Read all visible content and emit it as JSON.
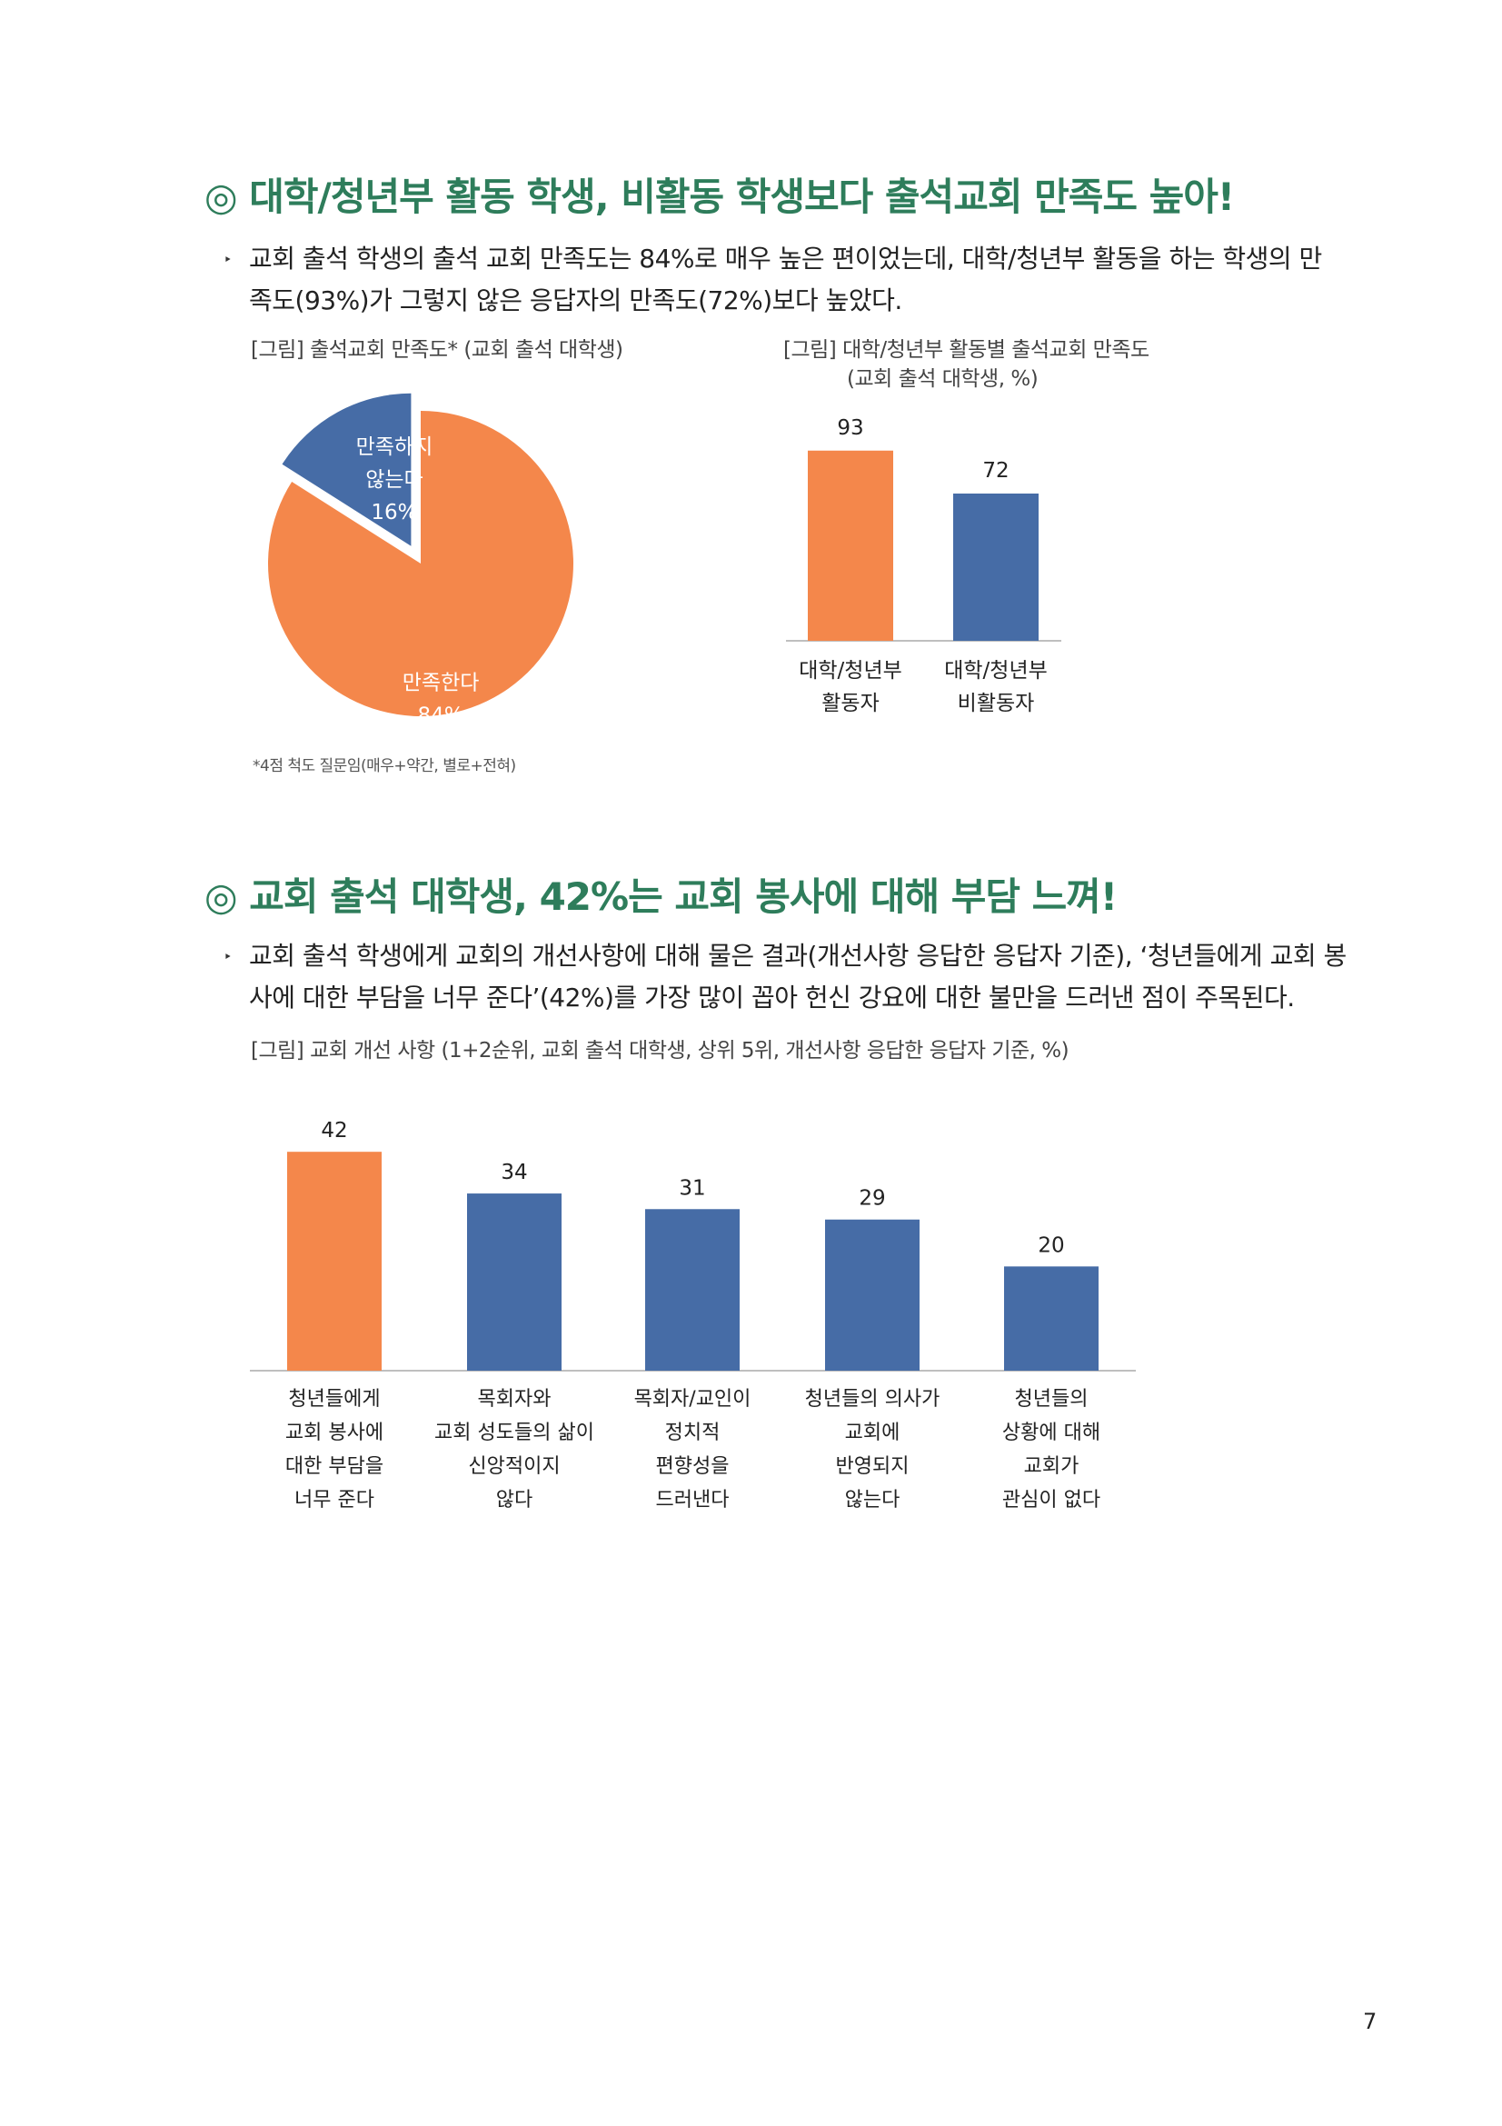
{
  "section1": {
    "heading": "◎ 대학/청년부 활동 학생, 비활동 학생보다 출석교회 만족도 높아!",
    "bullet_line1": "교회 출석 학생의 출석 교회 만족도는 84%로 매우 높은 편이었는데, 대학/청년부 활동을 하는 학생의 만",
    "bullet_line2": "족도(93%)가 그렇지 않은 응답자의 만족도(72%)보다 높았다.",
    "pie_caption": "[그림] 출석교회 만족도* (교회 출석 대학생)",
    "bar_caption_line1": "[그림] 대학/청년부 활동별 출석교회 만족도",
    "bar_caption_line2": "(교회 출석 대학생, %)",
    "footnote": "*4점 척도 질문임(매우+약간, 별로+전혀)"
  },
  "section2": {
    "heading": "◎ 교회 출석 대학생, 42%는 교회 봉사에 대해 부담 느껴!",
    "bullet_line1": "교회 출석 학생에게 교회의 개선사항에 대해 물은 결과(개선사항 응답한 응답자 기준), ‘청년들에게 교회 봉",
    "bullet_line2": "사에 대한 부담을 너무 준다’(42%)를 가장 많이 꼽아 헌신 강요에 대한 불만을 드러낸 점이 주목된다.",
    "chart_caption": "[그림] 교회 개선 사항 (1+2순위, 교회 출석 대학생, 상위 5위, 개선사항 응답한 응답자 기준, %)"
  },
  "bullet_mark": "‣",
  "page_number": "7",
  "colors": {
    "orange": "#f4874b",
    "blue": "#466ca6",
    "heading_green": "#2e7d5b",
    "axis": "#bfbfbf"
  },
  "chart_data": [
    {
      "type": "pie",
      "title": "",
      "slices": [
        {
          "label_lines": [
            "만족한다",
            "84%"
          ],
          "value": 84,
          "color": "#f4874b",
          "exploded": false
        },
        {
          "label_lines": [
            "만족하지",
            "않는다",
            "16%"
          ],
          "value": 16,
          "color": "#466ca6",
          "exploded": true
        }
      ]
    },
    {
      "type": "bar",
      "title": "",
      "categories": [
        [
          "대학/청년부",
          "활동자"
        ],
        [
          "대학/청년부",
          "비활동자"
        ]
      ],
      "values": [
        93,
        72
      ],
      "value_labels": [
        "93",
        "72"
      ],
      "colors": [
        "#f4874b",
        "#466ca6"
      ],
      "ylim": [
        0,
        100
      ]
    },
    {
      "type": "bar",
      "title": "",
      "categories": [
        [
          "청년들에게",
          "교회 봉사에",
          "대한 부담을",
          "너무 준다"
        ],
        [
          "목회자와",
          "교회 성도들의 삶이",
          "신앙적이지",
          "않다"
        ],
        [
          "목회자/교인이",
          "정치적",
          "편향성을",
          "드러낸다"
        ],
        [
          "청년들의 의사가",
          "교회에",
          "반영되지",
          "않는다"
        ],
        [
          "청년들의",
          "상황에 대해",
          "교회가",
          "관심이 없다"
        ]
      ],
      "values": [
        42,
        34,
        31,
        29,
        20
      ],
      "value_labels": [
        "42",
        "34",
        "31",
        "29",
        "20"
      ],
      "colors": [
        "#f4874b",
        "#466ca6",
        "#466ca6",
        "#466ca6",
        "#466ca6"
      ],
      "ylim": [
        0,
        45
      ]
    }
  ]
}
